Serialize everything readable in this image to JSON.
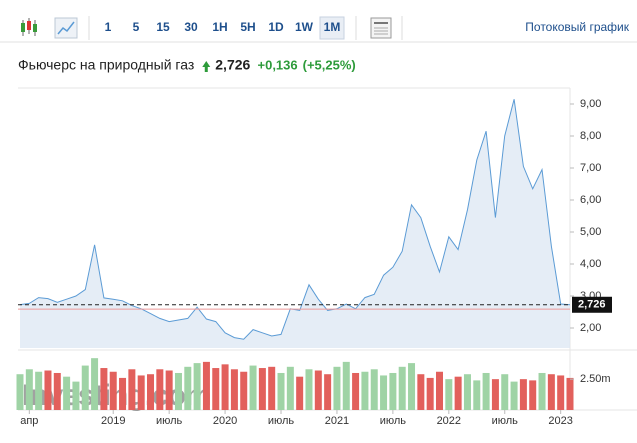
{
  "toolbar": {
    "intervals": [
      "1",
      "5",
      "15",
      "30",
      "1H",
      "5H",
      "1D",
      "1W",
      "1M"
    ],
    "active": "1M",
    "streaming_link": "Потоковый график"
  },
  "chart_data": {
    "type": "area",
    "title": "Фьючерс на природный газ",
    "price": "2,726",
    "change": "+0,136",
    "change_percent": "(+5,25%)",
    "watermark": "Investing.com",
    "categories": [
      null,
      "апр",
      null,
      null,
      null,
      null,
      null,
      null,
      null,
      null,
      "2019",
      null,
      null,
      null,
      null,
      null,
      "июль",
      null,
      null,
      null,
      null,
      null,
      "2020",
      null,
      null,
      null,
      null,
      null,
      "июль",
      null,
      null,
      null,
      null,
      null,
      "2021",
      null,
      null,
      null,
      null,
      null,
      "июль",
      null,
      null,
      null,
      null,
      null,
      "2022",
      null,
      null,
      null,
      null,
      null,
      "июль",
      null,
      null,
      null,
      null,
      null,
      "2023",
      null
    ],
    "series": [
      {
        "name": "Price",
        "color": "#5b9bd5",
        "values": [
          2.73,
          2.77,
          2.95,
          2.92,
          2.8,
          2.9,
          3.0,
          3.2,
          4.6,
          2.94,
          2.9,
          2.85,
          2.7,
          2.6,
          2.45,
          2.3,
          2.2,
          2.25,
          2.3,
          2.65,
          2.28,
          2.2,
          1.85,
          1.7,
          1.65,
          1.95,
          1.85,
          1.75,
          1.8,
          2.6,
          2.55,
          3.35,
          2.9,
          2.55,
          2.6,
          2.75,
          2.6,
          2.95,
          3.05,
          3.65,
          3.9,
          4.4,
          5.85,
          5.45,
          4.55,
          3.75,
          4.85,
          4.45,
          5.7,
          7.25,
          8.15,
          5.45,
          8.0,
          9.15,
          7.05,
          6.35,
          6.95,
          4.55,
          2.75,
          2.726
        ]
      },
      {
        "name": "Volume",
        "axis": "y2",
        "values": [
          2.9,
          3.3,
          3.1,
          3.2,
          3.0,
          2.7,
          2.3,
          3.6,
          4.2,
          3.4,
          3.1,
          2.6,
          3.3,
          2.8,
          2.9,
          3.3,
          3.2,
          3.0,
          3.5,
          3.8,
          3.9,
          3.4,
          3.7,
          3.3,
          3.1,
          3.6,
          3.4,
          3.5,
          3.0,
          3.5,
          2.7,
          3.3,
          3.2,
          2.9,
          3.5,
          3.9,
          3.0,
          3.1,
          3.3,
          2.8,
          3.0,
          3.5,
          3.8,
          2.9,
          2.6,
          3.1,
          2.5,
          2.7,
          2.9,
          2.4,
          3.0,
          2.5,
          2.9,
          2.3,
          2.5,
          2.4,
          3.0,
          2.9,
          2.8,
          2.6
        ]
      }
    ],
    "up_color": "#9fd3a5",
    "down_color": "#e2605c",
    "ylim": [
      1.375,
      9.5
    ],
    "yticks": [
      {
        "value": 2,
        "label": "2,00"
      },
      {
        "value": 3,
        "label": "3,00"
      },
      {
        "value": 4,
        "label": "4,00"
      },
      {
        "value": 5,
        "label": "5,00"
      },
      {
        "value": 6,
        "label": "6,00"
      },
      {
        "value": 7,
        "label": "7,00"
      },
      {
        "value": 8,
        "label": "8,00"
      },
      {
        "value": 9,
        "label": "9,00"
      }
    ],
    "y2lim": [
      0,
      4.7
    ],
    "y2ticks": [
      {
        "value": 2.5,
        "label": "2.50m"
      }
    ],
    "last_price": {
      "value": 2.726,
      "label": "2,726"
    },
    "prev_close": 2.59
  }
}
